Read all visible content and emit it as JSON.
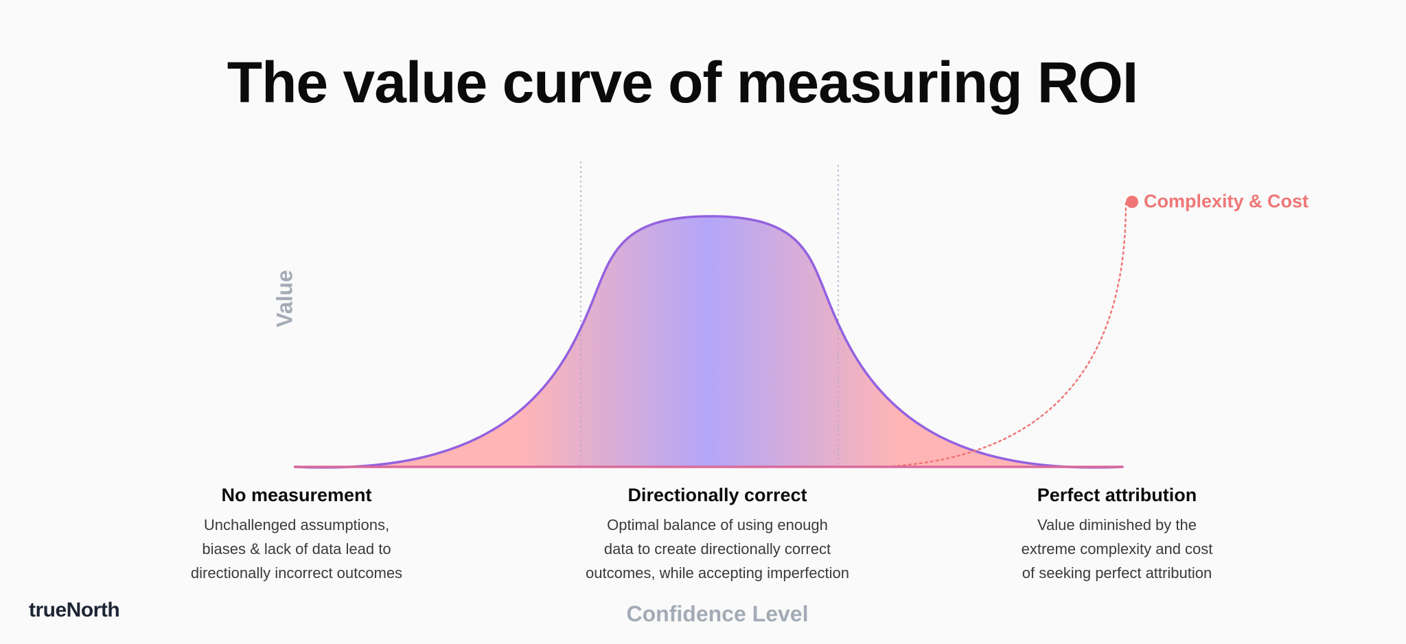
{
  "title": "The value curve of measuring ROI",
  "axes": {
    "x_label": "Confidence Level",
    "y_label": "Value"
  },
  "legend": {
    "label": "Complexity & Cost",
    "color": "#f07676"
  },
  "curve": {
    "stroke_color": "#9361e0",
    "fill_edge_color": "#ffb5b5",
    "fill_center_color": "#b3a6f8"
  },
  "zones": [
    {
      "title": "No measurement",
      "lines": [
        "Unchallenged assumptions,",
        "biases & lack of data lead to",
        "directionally incorrect outcomes"
      ]
    },
    {
      "title": "Directionally correct",
      "lines": [
        "Optimal balance of using enough",
        "data to create directionally correct",
        "outcomes, while accepting imperfection"
      ]
    },
    {
      "title": "Perfect attribution",
      "lines": [
        "Value diminished by the",
        "extreme complexity and cost",
        "of seeking perfect attribution"
      ]
    }
  ],
  "brand": {
    "name": "trueNorth"
  }
}
